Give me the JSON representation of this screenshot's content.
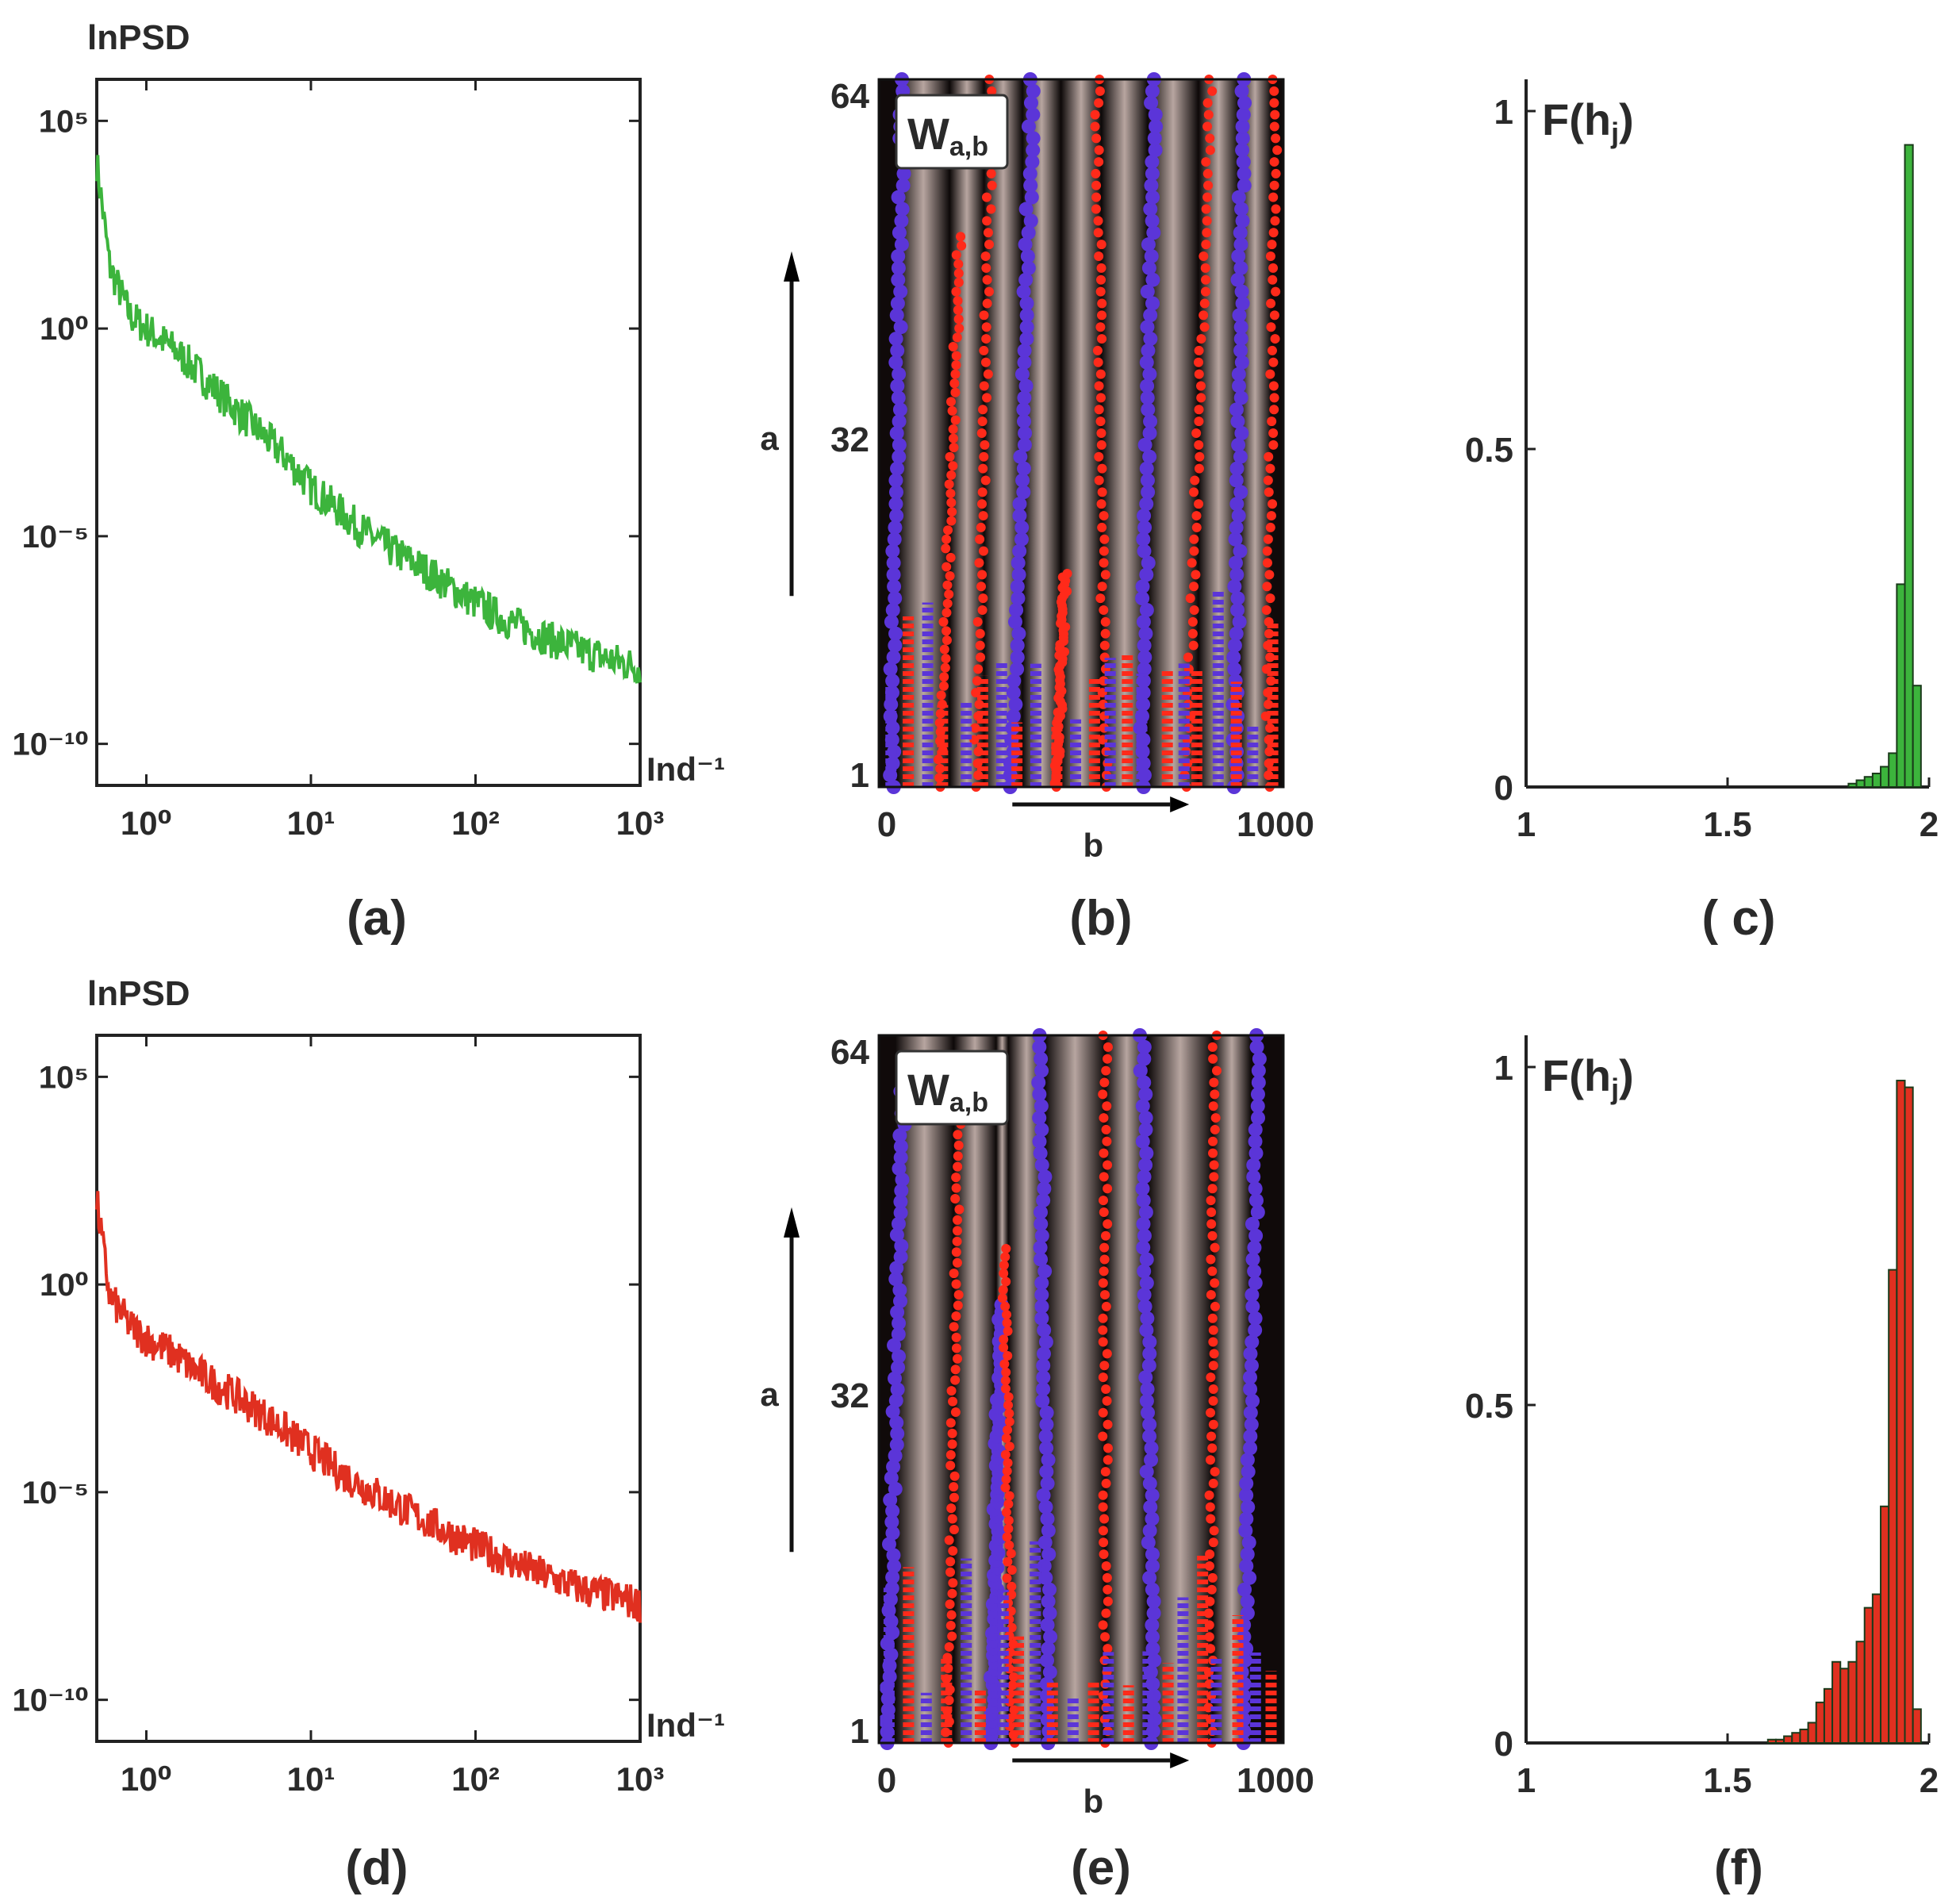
{
  "panels": [
    {
      "chart_data": {
        "type": "line",
        "ylabel": "lnPSD",
        "xlabel": "Ind⁻¹",
        "xscale": "log",
        "yscale": "log",
        "xlim": [
          0.5,
          1000
        ],
        "ylim": [
          1e-11,
          1000000.0
        ],
        "xticks": [
          "10⁰",
          "10¹",
          "10²",
          "10³"
        ],
        "yticks": [
          "10⁵",
          "10⁰",
          "10⁻⁵",
          "10⁻¹⁰"
        ],
        "series": [
          {
            "color": "#3cb43c",
            "x": [
              0.5,
              0.6,
              0.8,
              1,
              1.5,
              2,
              3,
              5,
              7,
              10,
              15,
              20,
              30,
              50,
              70,
              100,
              150,
              200,
              300,
              500,
              700,
              1000
            ],
            "y": [
              10000.0,
              30.0,
              2.0,
              1.0,
              0.3,
              0.1,
              0.02,
              0.003,
              0.0008,
              0.00015,
              4e-05,
              1.5e-05,
              5e-06,
              1.5e-06,
              6e-07,
              2.5e-07,
              1e-07,
              6e-08,
              3e-08,
              1.5e-08,
              1e-08,
              7e-09
            ]
          }
        ]
      },
      "caption": "(a)"
    },
    {
      "chart_data": {
        "type": "heatmap",
        "title": "Wa,b",
        "title_main": "W",
        "title_sub": "a,b",
        "xlabel": "b",
        "ylabel": "a",
        "xlim": [
          0,
          1000
        ],
        "ylim": [
          1,
          64
        ],
        "xticks": [
          "0",
          "1000"
        ],
        "yticks": [
          "64",
          "32",
          "1"
        ],
        "maxima_color": "#ff2a1a",
        "minima_color": "#5b35d8",
        "ridges": [
          {
            "kind": "max",
            "x": [
              150,
              200
            ],
            "y": [
              1,
              50
            ]
          },
          {
            "kind": "min",
            "x": [
              30,
              60
            ],
            "y": [
              1,
              64
            ]
          },
          {
            "kind": "max",
            "x": [
              240,
              280
            ],
            "y": [
              1,
              64
            ]
          },
          {
            "kind": "min",
            "x": [
              330,
              380
            ],
            "y": [
              1,
              64
            ]
          },
          {
            "kind": "max",
            "x": [
              440,
              460
            ],
            "y": [
              1,
              20
            ]
          },
          {
            "kind": "max",
            "x": [
              560,
              540
            ],
            "y": [
              1,
              64
            ]
          },
          {
            "kind": "min",
            "x": [
              650,
              680
            ],
            "y": [
              1,
              64
            ]
          },
          {
            "kind": "max",
            "x": [
              760,
              820
            ],
            "y": [
              1,
              64
            ]
          },
          {
            "kind": "min",
            "x": [
              880,
              900
            ],
            "y": [
              1,
              64
            ]
          },
          {
            "kind": "max",
            "x": [
              960,
              980
            ],
            "y": [
              1,
              64
            ]
          }
        ]
      },
      "caption": "(b)"
    },
    {
      "chart_data": {
        "type": "bar",
        "title": "F(hj)",
        "title_main": "F(h",
        "title_sub": "j",
        "title_end": ")",
        "xlim": [
          1,
          2
        ],
        "ylim": [
          0,
          1
        ],
        "xticks": [
          "1",
          "1.5",
          "2"
        ],
        "yticks": [
          "1",
          "0.5",
          "0"
        ],
        "color": "#3cb43c",
        "x": [
          1.8,
          1.82,
          1.84,
          1.86,
          1.88,
          1.9,
          1.92,
          1.94,
          1.96
        ],
        "values": [
          0.005,
          0.01,
          0.015,
          0.02,
          0.03,
          0.05,
          0.3,
          0.95,
          0.15
        ]
      },
      "caption": "( c)"
    },
    {
      "chart_data": {
        "type": "line",
        "ylabel": "lnPSD",
        "xlabel": "Ind⁻¹",
        "xscale": "log",
        "yscale": "log",
        "xlim": [
          0.5,
          1000
        ],
        "ylim": [
          1e-11,
          1000000.0
        ],
        "xticks": [
          "10⁰",
          "10¹",
          "10²",
          "10³"
        ],
        "yticks": [
          "10⁵",
          "10⁰",
          "10⁻⁵",
          "10⁻¹⁰"
        ],
        "series": [
          {
            "color": "#e03020",
            "x": [
              0.5,
              0.6,
              0.8,
              1,
              1.5,
              2,
              3,
              5,
              7,
              10,
              15,
              20,
              30,
              50,
              70,
              100,
              150,
              200,
              300,
              500,
              700,
              1000
            ],
            "y": [
              100.0,
              0.5,
              0.1,
              0.05,
              0.02,
              0.008,
              0.003,
              0.0008,
              0.0003,
              0.0001,
              3e-05,
              1.5e-05,
              6e-06,
              2e-06,
              1e-06,
              5e-07,
              2.5e-07,
              1.5e-07,
              8e-08,
              4e-08,
              3e-08,
              2e-08
            ]
          }
        ]
      },
      "caption": "(d)"
    },
    {
      "chart_data": {
        "type": "heatmap",
        "title": "Wa,b",
        "title_main": "W",
        "title_sub": "a,b",
        "xlabel": "b",
        "ylabel": "a",
        "xlim": [
          0,
          1000
        ],
        "ylim": [
          1,
          64
        ],
        "xticks": [
          "0",
          "1000"
        ],
        "yticks": [
          "64",
          "32",
          "1"
        ],
        "maxima_color": "#ff2a1a",
        "minima_color": "#5b35d8",
        "ridges": [
          {
            "kind": "min",
            "x": [
              20,
              60
            ],
            "y": [
              1,
              60
            ]
          },
          {
            "kind": "max",
            "x": [
              170,
              200
            ],
            "y": [
              1,
              58
            ]
          },
          {
            "kind": "min",
            "x": [
              280,
              300
            ],
            "y": [
              1,
              40
            ]
          },
          {
            "kind": "max",
            "x": [
              330,
              310
            ],
            "y": [
              1,
              45
            ]
          },
          {
            "kind": "min",
            "x": [
              420,
              400
            ],
            "y": [
              1,
              64
            ]
          },
          {
            "kind": "max",
            "x": [
              560,
              560
            ],
            "y": [
              1,
              64
            ]
          },
          {
            "kind": "min",
            "x": [
              680,
              650
            ],
            "y": [
              1,
              64
            ]
          },
          {
            "kind": "max",
            "x": [
              820,
              830
            ],
            "y": [
              1,
              64
            ]
          },
          {
            "kind": "min",
            "x": [
              900,
              940
            ],
            "y": [
              1,
              64
            ]
          }
        ]
      },
      "caption": "(e)"
    },
    {
      "chart_data": {
        "type": "bar",
        "title": "F(hj)",
        "title_main": "F(h",
        "title_sub": "j",
        "title_end": ")",
        "xlim": [
          1,
          2
        ],
        "ylim": [
          0,
          1
        ],
        "xticks": [
          "1",
          "1.5",
          "2"
        ],
        "yticks": [
          "1",
          "0.5",
          "0"
        ],
        "color": "#e03020",
        "x": [
          1.6,
          1.62,
          1.64,
          1.66,
          1.68,
          1.7,
          1.72,
          1.74,
          1.76,
          1.78,
          1.8,
          1.82,
          1.84,
          1.86,
          1.88,
          1.9,
          1.92,
          1.94,
          1.96
        ],
        "values": [
          0.005,
          0.005,
          0.01,
          0.015,
          0.02,
          0.03,
          0.06,
          0.08,
          0.12,
          0.11,
          0.12,
          0.15,
          0.2,
          0.22,
          0.35,
          0.7,
          0.98,
          0.97,
          0.05
        ]
      },
      "caption": "(f)"
    }
  ]
}
